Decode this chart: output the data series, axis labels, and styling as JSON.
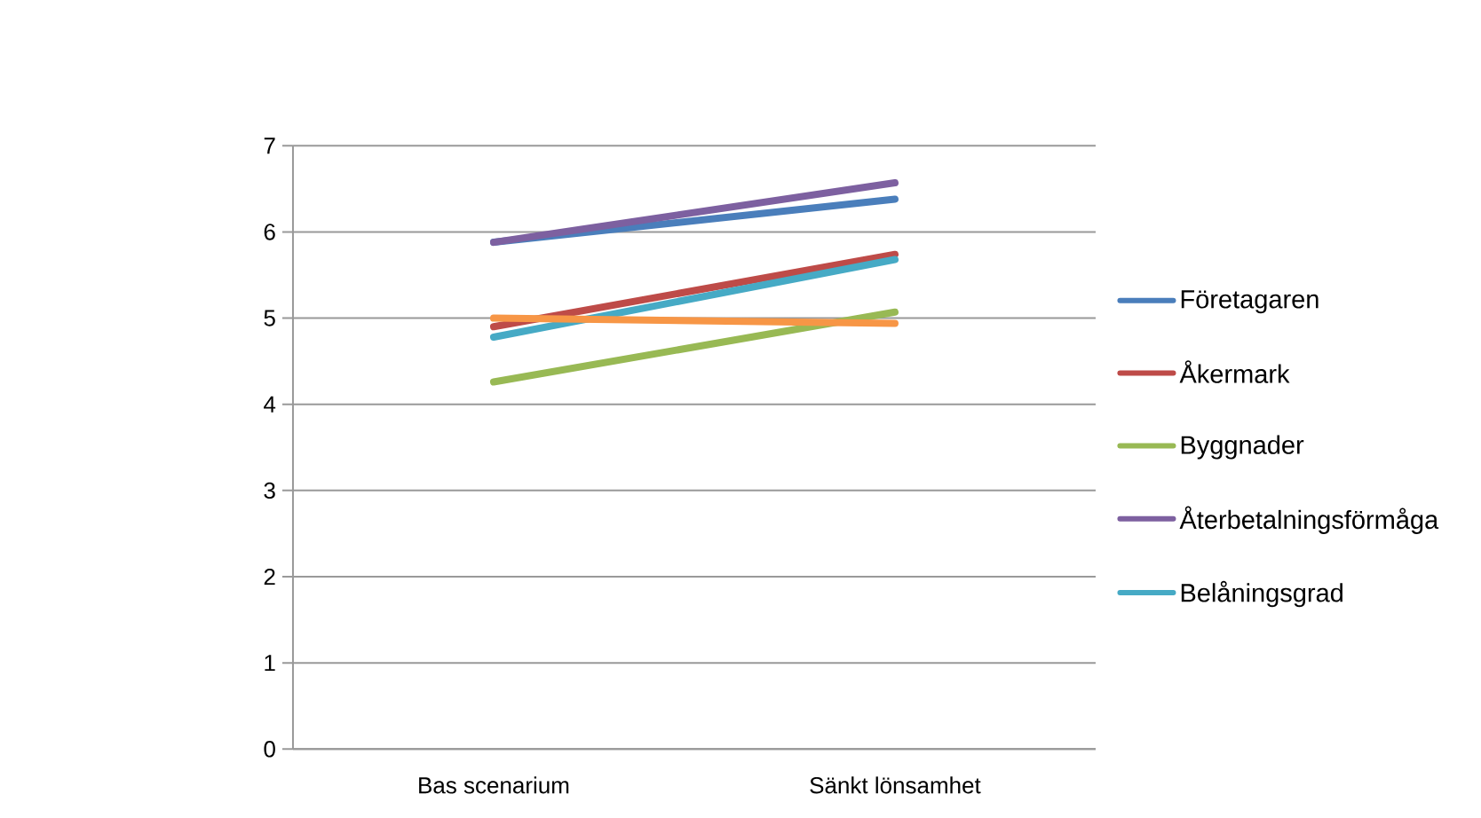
{
  "chart_data": {
    "type": "line",
    "categories": [
      "Bas scenarium",
      "Sänkt lönsamhet"
    ],
    "ylim": [
      0,
      7
    ],
    "yticks": [
      0,
      1,
      2,
      3,
      4,
      5,
      6,
      7
    ],
    "grid": "y",
    "legend": "right",
    "marker": "none",
    "line_style": "solid",
    "series": [
      {
        "name": "Företagaren",
        "color": "#4a7ebb",
        "values": [
          5.88,
          6.38
        ]
      },
      {
        "name": "Åkermark",
        "color": "#be4b48",
        "values": [
          4.9,
          5.74
        ]
      },
      {
        "name": "Byggnader",
        "color": "#98b954",
        "values": [
          4.26,
          5.07
        ]
      },
      {
        "name": "Återbetalningsförmåga",
        "color": "#7d60a0",
        "values": [
          5.88,
          6.57
        ]
      },
      {
        "name": "Belåningsgrad",
        "color": "#46aac5",
        "values": [
          4.78,
          5.68
        ]
      },
      {
        "color": "#f79646",
        "values": [
          5.0,
          4.94
        ]
      }
    ]
  }
}
